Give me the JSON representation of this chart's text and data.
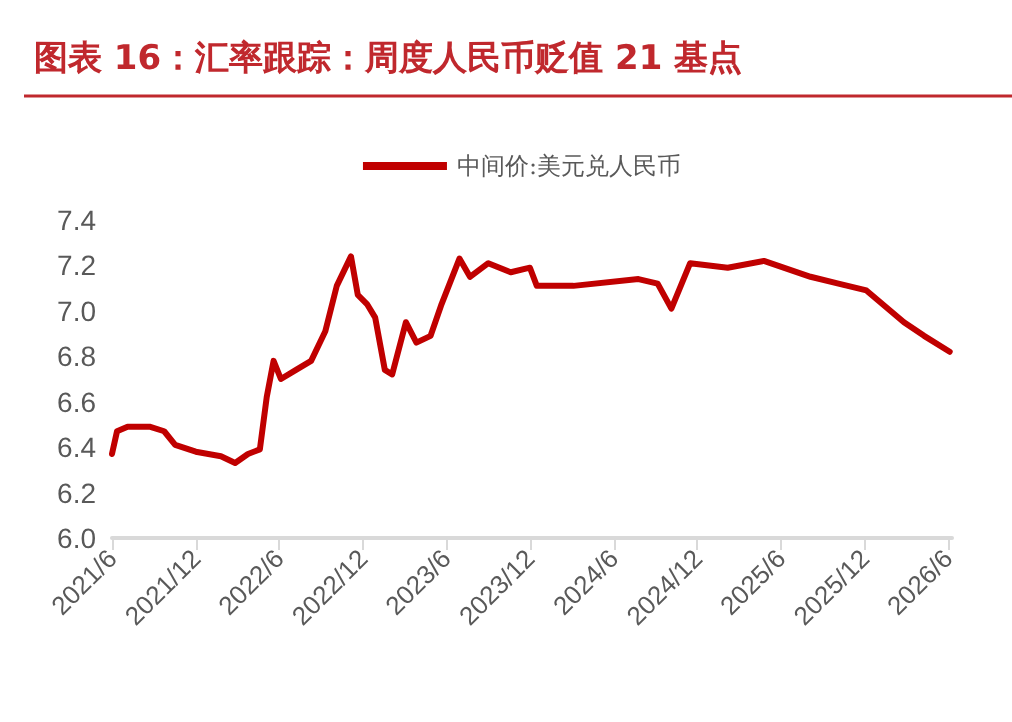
{
  "chart_data": {
    "type": "line",
    "title": "图表 16：汇率跟踪：周度人民币贬值 21 基点",
    "x": [
      "2021-06-01",
      "2021-06-12",
      "2021-07-05",
      "2021-08-22",
      "2021-09-23",
      "2021-10-17",
      "2021-12-01",
      "2022-01-25",
      "2022-02-25",
      "2022-03-25",
      "2022-04-20",
      "2022-05-05",
      "2022-05-20",
      "2022-06-05",
      "2022-07-08",
      "2022-08-10",
      "2022-09-10",
      "2022-10-05",
      "2022-11-05",
      "2022-11-20",
      "2022-12-10",
      "2022-12-28",
      "2023-01-18",
      "2023-02-03",
      "2023-03-05",
      "2023-03-28",
      "2023-04-28",
      "2023-05-22",
      "2023-06-30",
      "2023-07-23",
      "2023-09-01",
      "2023-10-20",
      "2023-12-01",
      "2023-12-16",
      "2024-03-05",
      "2024-07-25",
      "2024-09-05",
      "2024-10-05",
      "2024-11-15",
      "2025-02-05",
      "2025-04-25",
      "2025-08-05",
      "2025-10-05",
      "2025-12-05",
      "2026-02-25",
      "2026-04-10",
      "2026-06-05"
    ],
    "series": [
      {
        "name": "中间价:美元兑人民币",
        "color": "#c00000",
        "values": [
          6.37,
          6.47,
          6.49,
          6.49,
          6.47,
          6.41,
          6.38,
          6.36,
          6.33,
          6.37,
          6.39,
          6.62,
          6.78,
          6.7,
          6.74,
          6.78,
          6.91,
          7.11,
          7.24,
          7.07,
          7.03,
          6.97,
          6.74,
          6.72,
          6.95,
          6.86,
          6.89,
          7.03,
          7.23,
          7.15,
          7.21,
          7.17,
          7.19,
          7.11,
          7.11,
          7.14,
          7.12,
          7.01,
          7.21,
          7.19,
          7.22,
          7.15,
          7.12,
          7.09,
          6.95,
          6.89,
          6.82
        ]
      }
    ],
    "xlim": [
      "2021-06-01",
      "2026-06-10"
    ],
    "xticks": [
      {
        "value": "2021-06-01",
        "label": "2021/6"
      },
      {
        "value": "2021-12-01",
        "label": "2021/12"
      },
      {
        "value": "2022-06-01",
        "label": "2022/6"
      },
      {
        "value": "2022-12-01",
        "label": "2022/12"
      },
      {
        "value": "2023-06-01",
        "label": "2023/6"
      },
      {
        "value": "2023-12-01",
        "label": "2023/12"
      },
      {
        "value": "2024-06-01",
        "label": "2024/6"
      },
      {
        "value": "2024-12-01",
        "label": "2024/12"
      },
      {
        "value": "2025-06-01",
        "label": "2025/6"
      },
      {
        "value": "2025-12-01",
        "label": "2025/12"
      },
      {
        "value": "2026-06-01",
        "label": "2026/6"
      }
    ],
    "ylim": [
      6.0,
      7.4
    ],
    "yticks": [
      {
        "value": 6.0,
        "label": "6.0"
      },
      {
        "value": 6.2,
        "label": "6.2"
      },
      {
        "value": 6.4,
        "label": "6.4"
      },
      {
        "value": 6.6,
        "label": "6.6"
      },
      {
        "value": 6.8,
        "label": "6.8"
      },
      {
        "value": 7.0,
        "label": "7.0"
      },
      {
        "value": 7.2,
        "label": "7.2"
      },
      {
        "value": 7.4,
        "label": "7.4"
      }
    ],
    "grid": false,
    "legend": "top",
    "marker": "none",
    "line_style": "solid"
  }
}
